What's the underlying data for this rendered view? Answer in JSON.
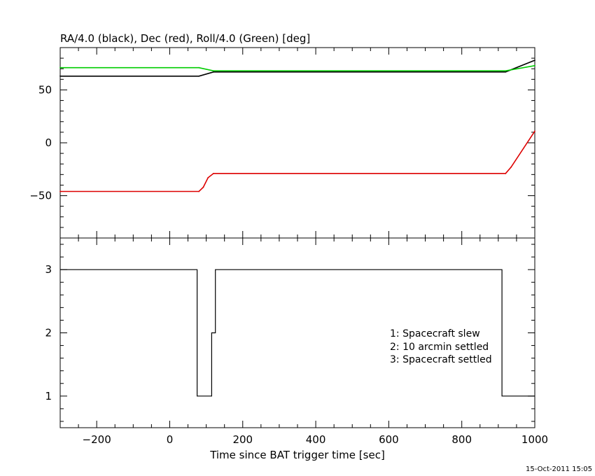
{
  "top_title": "RA/4.0 (black), Dec (red), Roll/4.0 (Green) [deg]",
  "xlabel": "Time since BAT trigger time [sec]",
  "timestamp": "15-Oct-2011 15:05",
  "legend_lines": [
    "1: Spacecraft slew",
    "2: 10 arcmin settled",
    "3: Spacecraft settled"
  ],
  "colors": {
    "ra": "#000000",
    "dec": "#dd0000",
    "roll": "#00cc00",
    "axis": "#000000"
  },
  "chart_data": [
    {
      "type": "line",
      "title": "RA/4.0 (black), Dec (red), Roll/4.0 (Green) [deg]",
      "xlim": [
        -300,
        1000
      ],
      "ylim": [
        -90,
        90
      ],
      "x_ticks": [
        -200,
        0,
        200,
        400,
        600,
        800,
        1000
      ],
      "y_ticks": [
        -50,
        0,
        50
      ],
      "y_tick_labels": [
        "−50",
        "0",
        "50"
      ],
      "series": [
        {
          "key": "ra",
          "x": [
            -300,
            80,
            120,
            920,
            1000
          ],
          "y": [
            63,
            63,
            67,
            67,
            78
          ]
        },
        {
          "key": "dec",
          "x": [
            -300,
            80,
            92,
            105,
            120,
            920,
            935,
            1000
          ],
          "y": [
            -46,
            -46,
            -42,
            -33,
            -29,
            -29,
            -23,
            11
          ]
        },
        {
          "key": "roll",
          "x": [
            -300,
            80,
            120,
            920,
            1000
          ],
          "y": [
            71,
            71,
            68,
            68,
            73
          ]
        }
      ]
    },
    {
      "type": "line",
      "title": "",
      "xlabel": "Time since BAT trigger time [sec]",
      "xlim": [
        -300,
        1000
      ],
      "ylim": [
        0.5,
        3.5
      ],
      "x_ticks": [
        -200,
        0,
        200,
        400,
        600,
        800,
        1000
      ],
      "x_tick_labels": [
        "−200",
        "0",
        "200",
        "400",
        "600",
        "800",
        "1000"
      ],
      "y_ticks": [
        1,
        2,
        3
      ],
      "y_tick_labels": [
        "1",
        "2",
        "3"
      ],
      "series": [
        {
          "key": "status",
          "step": true,
          "x": [
            -300,
            75,
            75,
            115,
            115,
            125,
            125,
            910,
            910,
            1000
          ],
          "y": [
            3,
            3,
            1,
            1,
            2,
            2,
            3,
            3,
            1,
            1
          ]
        }
      ]
    }
  ]
}
